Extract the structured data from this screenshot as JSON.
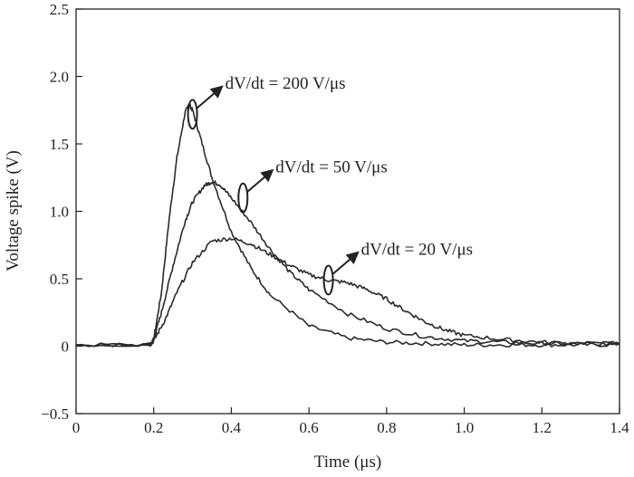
{
  "chart_data": {
    "type": "line",
    "xlabel": "Time (μs)",
    "ylabel": "Voltage spike (V)",
    "xlim": [
      0,
      1.4
    ],
    "ylim": [
      -0.5,
      2.5
    ],
    "x_ticks": [
      "0",
      "0.2",
      "0.4",
      "0.6",
      "0.8",
      "1.0",
      "1.2",
      "1.4"
    ],
    "y_ticks": [
      "−0.5",
      "0",
      "0.5",
      "1.0",
      "1.5",
      "2.0",
      "2.5"
    ],
    "grid": false,
    "series": [
      {
        "name": "dV/dt = 200 V/μs",
        "x": [
          0,
          0.19,
          0.2,
          0.22,
          0.24,
          0.26,
          0.28,
          0.29,
          0.3,
          0.32,
          0.35,
          0.4,
          0.45,
          0.5,
          0.6,
          0.7,
          0.8,
          0.9,
          1.0,
          1.1,
          1.2,
          1.3,
          1.4
        ],
        "values": [
          0.01,
          0.01,
          0.05,
          0.4,
          0.95,
          1.4,
          1.72,
          1.8,
          1.75,
          1.55,
          1.25,
          0.85,
          0.58,
          0.38,
          0.15,
          0.06,
          0.03,
          0.02,
          0.01,
          0.01,
          0.01,
          0.01,
          0.01
        ]
      },
      {
        "name": "dV/dt = 50 V/μs",
        "x": [
          0,
          0.19,
          0.2,
          0.22,
          0.25,
          0.28,
          0.3,
          0.33,
          0.35,
          0.37,
          0.4,
          0.45,
          0.5,
          0.55,
          0.6,
          0.7,
          0.8,
          0.9,
          1.0,
          1.1,
          1.2,
          1.3,
          1.4
        ],
        "values": [
          0.01,
          0.01,
          0.05,
          0.25,
          0.6,
          0.92,
          1.07,
          1.19,
          1.22,
          1.2,
          1.1,
          0.92,
          0.72,
          0.55,
          0.42,
          0.24,
          0.13,
          0.07,
          0.04,
          0.03,
          0.02,
          0.02,
          0.02
        ]
      },
      {
        "name": "dV/dt = 20 V/μs",
        "x": [
          0,
          0.19,
          0.2,
          0.23,
          0.26,
          0.3,
          0.35,
          0.4,
          0.45,
          0.5,
          0.55,
          0.6,
          0.65,
          0.7,
          0.75,
          0.8,
          0.85,
          0.9,
          0.95,
          1.0,
          1.1,
          1.2,
          1.3,
          1.4
        ],
        "values": [
          0.01,
          0.01,
          0.04,
          0.2,
          0.4,
          0.62,
          0.78,
          0.8,
          0.76,
          0.68,
          0.6,
          0.53,
          0.49,
          0.47,
          0.42,
          0.35,
          0.26,
          0.18,
          0.12,
          0.08,
          0.05,
          0.03,
          0.02,
          0.02
        ]
      }
    ],
    "annotations": [
      {
        "series": 0,
        "text": "dV/dt = 200 V/μs",
        "at_x": 0.3,
        "at_y": 1.72
      },
      {
        "series": 1,
        "text": "dV/dt = 50 V/μs",
        "at_x": 0.43,
        "at_y": 1.1
      },
      {
        "series": 2,
        "text": "dV/dt = 20 V/μs",
        "at_x": 0.65,
        "at_y": 0.49
      }
    ]
  }
}
